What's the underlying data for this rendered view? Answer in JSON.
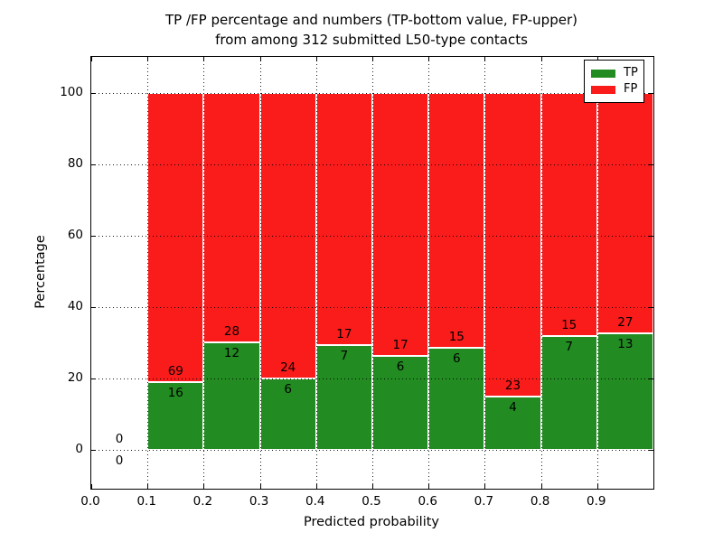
{
  "title": {
    "line1": "TP /FP percentage and numbers (TP-bottom value, FP-upper)",
    "line2": "from among 312 submitted L50-type contacts"
  },
  "colors": {
    "tp": "#228B22",
    "fp": "#FA1B1B",
    "grid": "#000000"
  },
  "legend": {
    "items": [
      {
        "label": "TP",
        "color": "#228B22"
      },
      {
        "label": "FP",
        "color": "#FA1B1B"
      }
    ]
  },
  "chart_data": {
    "type": "bar",
    "stacked": true,
    "title": "TP /FP percentage and numbers (TP-bottom value, FP-upper) from among 312 submitted L50-type contacts",
    "xlabel": "Predicted probability",
    "ylabel": "Percentage",
    "xlim": [
      0.0,
      1.0
    ],
    "ylim": [
      -11,
      110
    ],
    "xticks": [
      0.0,
      0.1,
      0.2,
      0.3,
      0.4,
      0.5,
      0.6,
      0.7,
      0.8,
      0.9
    ],
    "xtick_labels": [
      "0.0",
      "0.1",
      "0.2",
      "0.3",
      "0.4",
      "0.5",
      "0.6",
      "0.7",
      "0.8",
      "0.9"
    ],
    "yticks": [
      0,
      20,
      40,
      60,
      80,
      100
    ],
    "grid": true,
    "legend_position": "upper right",
    "total_contacts": 312,
    "series_names": [
      "TP",
      "FP"
    ],
    "bins": [
      {
        "range": [
          0.0,
          0.1
        ],
        "tp": 0,
        "fp": 0,
        "tp_pct": null,
        "fp_pct": null
      },
      {
        "range": [
          0.1,
          0.2
        ],
        "tp": 16,
        "fp": 69,
        "tp_pct": 18.82,
        "fp_pct": 81.18
      },
      {
        "range": [
          0.2,
          0.3
        ],
        "tp": 12,
        "fp": 28,
        "tp_pct": 30.0,
        "fp_pct": 70.0
      },
      {
        "range": [
          0.3,
          0.4
        ],
        "tp": 6,
        "fp": 24,
        "tp_pct": 20.0,
        "fp_pct": 80.0
      },
      {
        "range": [
          0.4,
          0.5
        ],
        "tp": 7,
        "fp": 17,
        "tp_pct": 29.17,
        "fp_pct": 70.83
      },
      {
        "range": [
          0.5,
          0.6
        ],
        "tp": 6,
        "fp": 17,
        "tp_pct": 26.09,
        "fp_pct": 73.91
      },
      {
        "range": [
          0.6,
          0.7
        ],
        "tp": 6,
        "fp": 15,
        "tp_pct": 28.57,
        "fp_pct": 71.43
      },
      {
        "range": [
          0.7,
          0.8
        ],
        "tp": 4,
        "fp": 23,
        "tp_pct": 14.81,
        "fp_pct": 85.19
      },
      {
        "range": [
          0.8,
          0.9
        ],
        "tp": 7,
        "fp": 15,
        "tp_pct": 31.82,
        "fp_pct": 68.18
      },
      {
        "range": [
          0.9,
          1.0
        ],
        "tp": 13,
        "fp": 27,
        "tp_pct": 32.5,
        "fp_pct": 67.5
      }
    ]
  }
}
